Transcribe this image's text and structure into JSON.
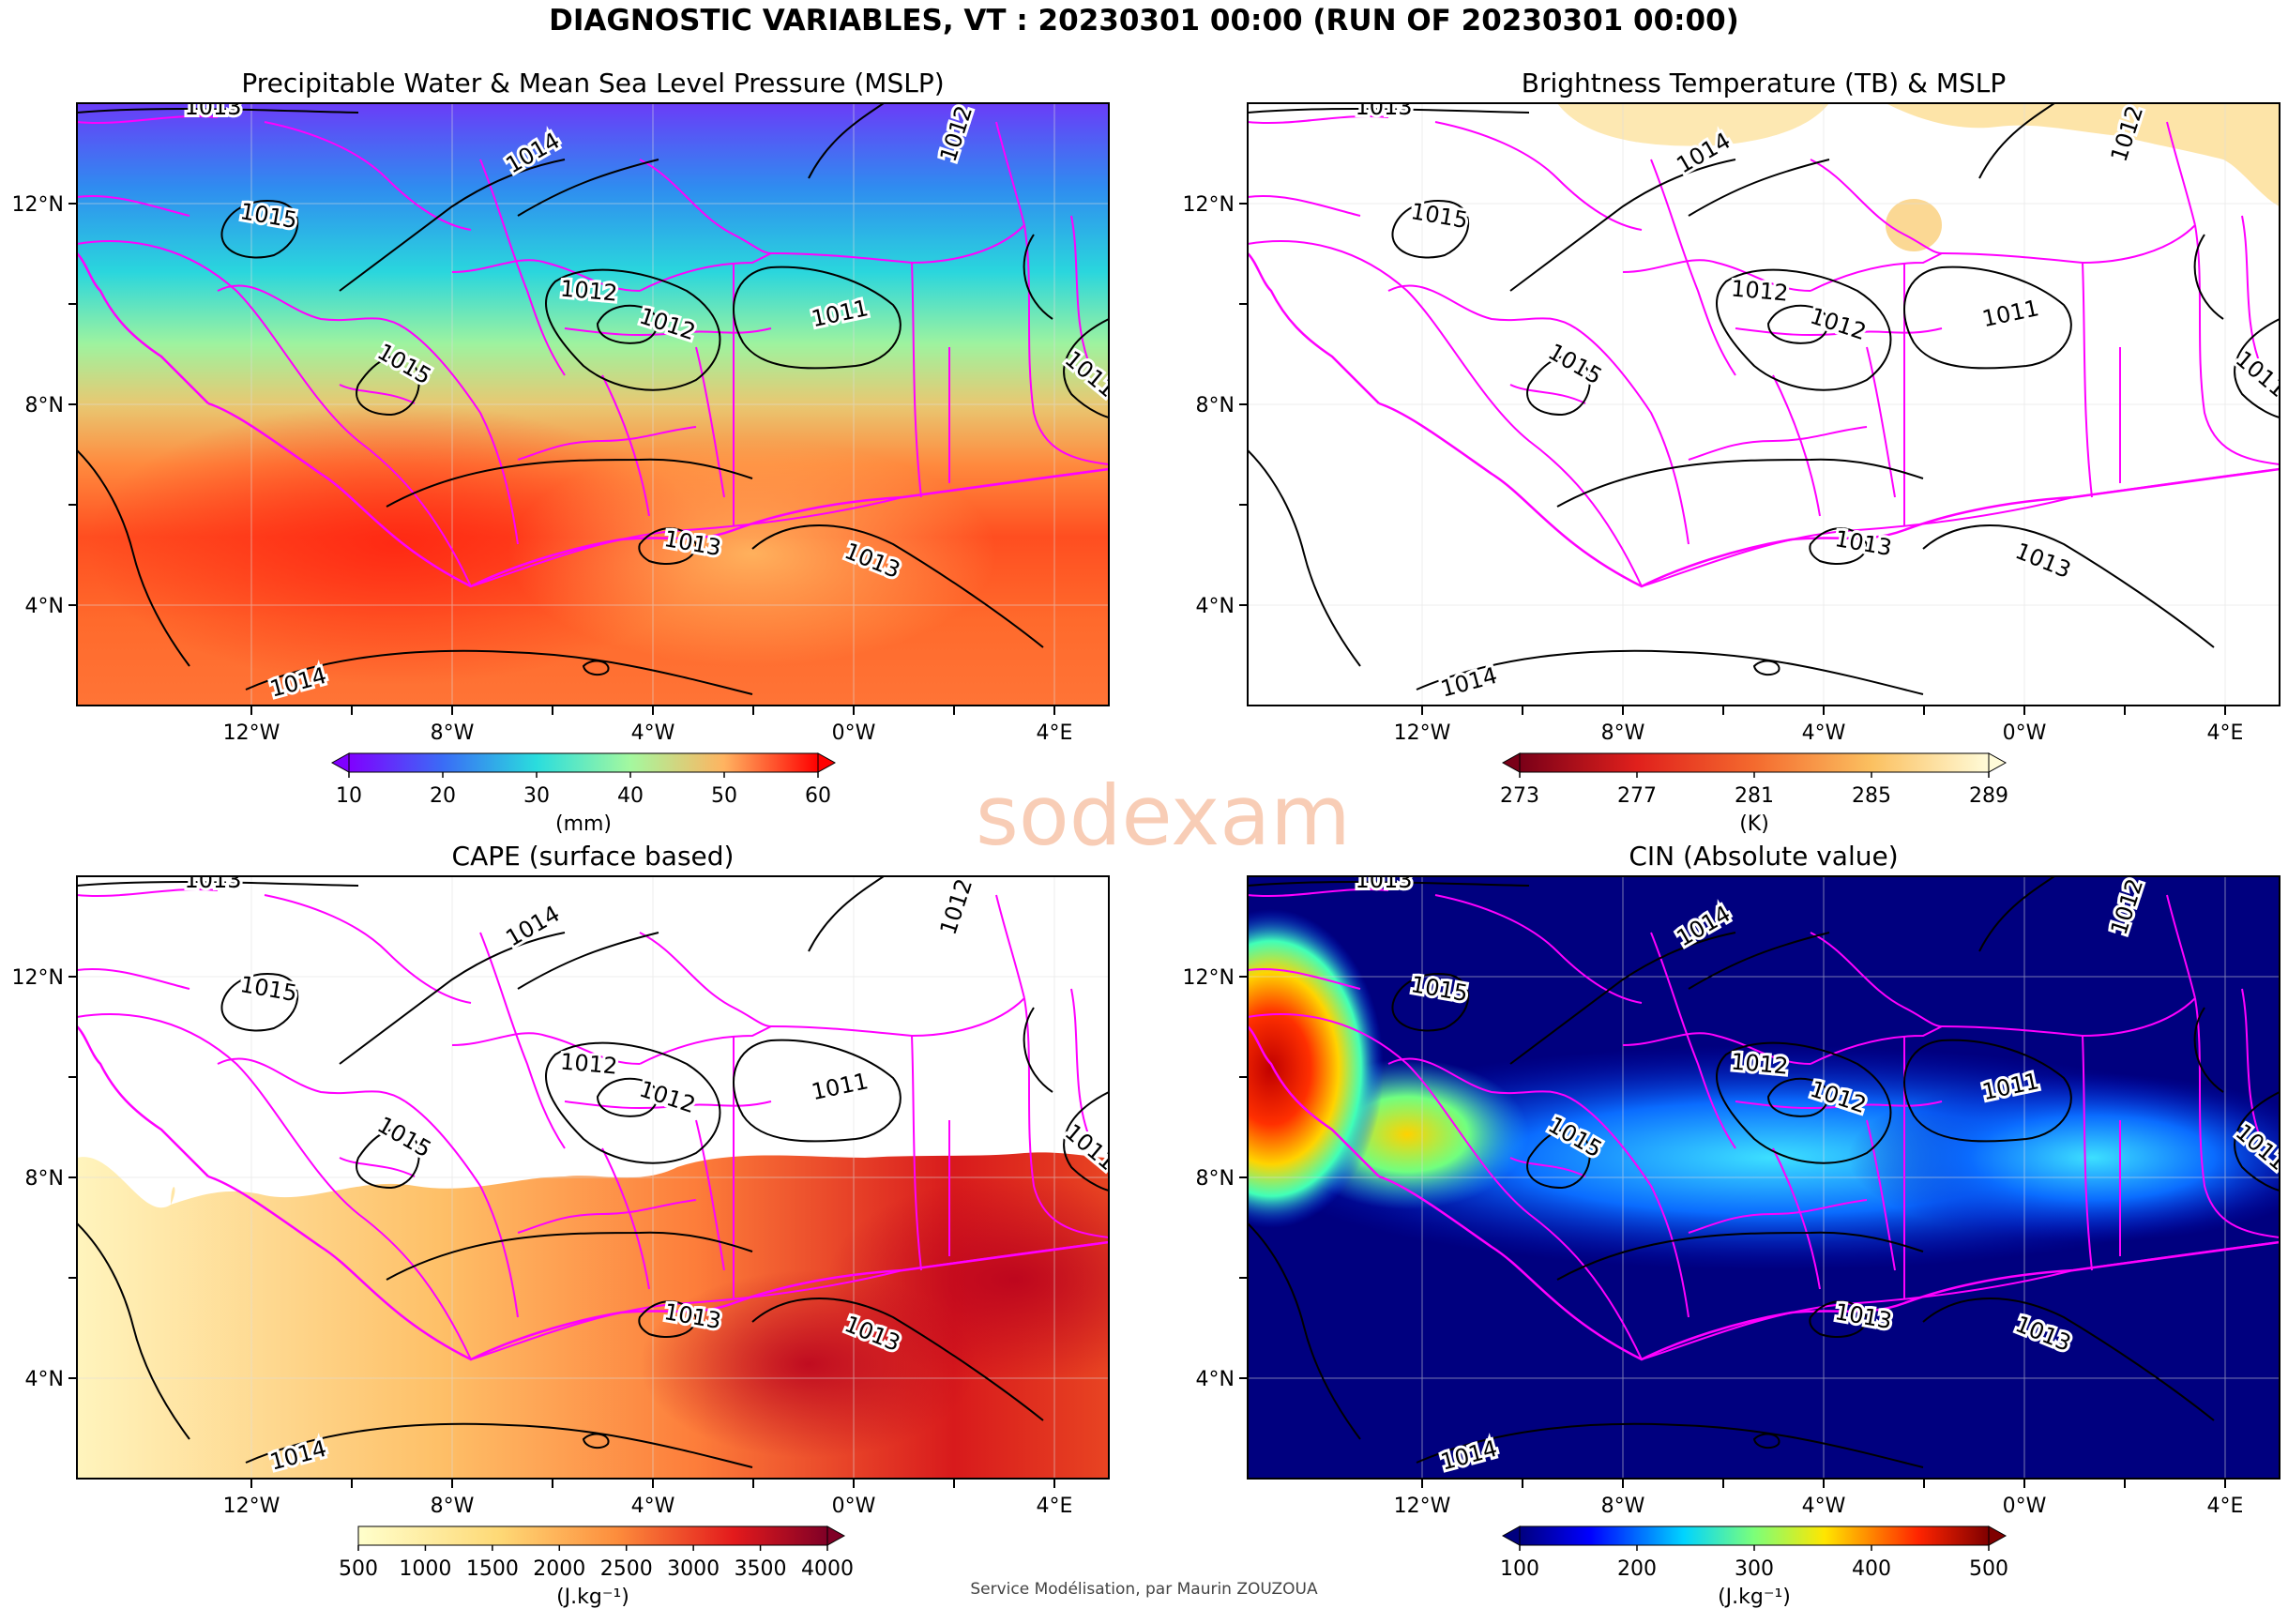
{
  "title": "DIAGNOSTIC VARIABLES, VT : 20230301 00:00 (RUN OF 20230301 00:00)",
  "credit": "Service Modélisation, par Maurin ZOUZOUA",
  "watermark_text": "sodexam",
  "colors": {
    "border_magenta": "#ff00ff",
    "contour": "#000000",
    "watermark_orange": "#f2a47a",
    "watermark_green": "#8ebfa0"
  },
  "lat_ticks": [
    "4°N",
    "8°N",
    "12°N"
  ],
  "lon_ticks": [
    "12°W",
    "8°W",
    "4°W",
    "0°W",
    "4°E"
  ],
  "contour_labels": [
    "1013",
    "1014",
    "1012",
    "1015",
    "1012",
    "1012",
    "1011",
    "1015",
    "1011",
    "1013",
    "1013",
    "1014"
  ],
  "panels": [
    {
      "key": "pw",
      "title": "Precipitable Water & Mean Sea Level Pressure (MSLP)",
      "colorbar": {
        "ticks": [
          "10",
          "20",
          "30",
          "40",
          "50",
          "60"
        ],
        "unit": "(mm)",
        "cmap": "rainbow",
        "extend": "both"
      }
    },
    {
      "key": "tb",
      "title": "Brightness Temperature (TB) & MSLP",
      "colorbar": {
        "ticks": [
          "273",
          "277",
          "281",
          "285",
          "289"
        ],
        "unit": "(K)",
        "cmap": "tb",
        "extend": "both"
      }
    },
    {
      "key": "cape",
      "title": "CAPE (surface based)",
      "colorbar": {
        "ticks": [
          "500",
          "1000",
          "1500",
          "2000",
          "2500",
          "3000",
          "3500",
          "4000"
        ],
        "unit": "(J.kg⁻¹)",
        "cmap": "ylorrd",
        "extend": "max"
      }
    },
    {
      "key": "cin",
      "title": "CIN (Absolute value)",
      "colorbar": {
        "ticks": [
          "100",
          "200",
          "300",
          "400",
          "500"
        ],
        "unit": "(J.kg⁻¹)",
        "cmap": "jet",
        "extend": "both"
      }
    }
  ]
}
